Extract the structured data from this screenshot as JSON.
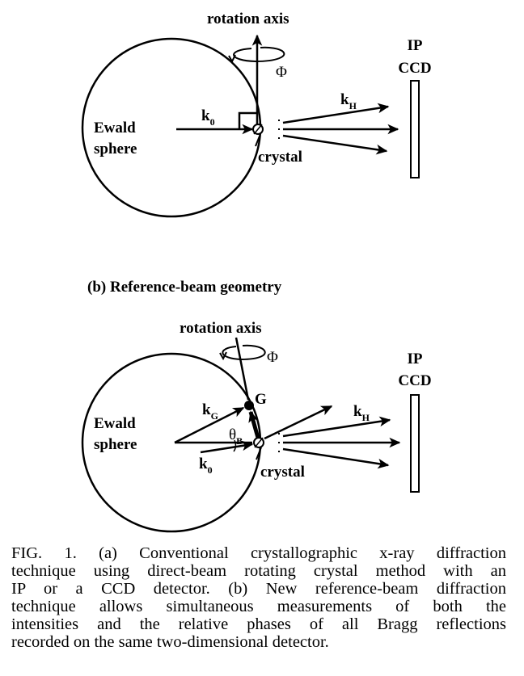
{
  "panel_a": {
    "rotation_axis": "rotation axis",
    "phi": "Φ",
    "ewald_line1": "Ewald",
    "ewald_line2": "sphere",
    "k0_main": "k",
    "k0_sub": "0",
    "kh_main": "k",
    "kh_sub": "H",
    "crystal": "crystal",
    "detector_line1": "IP",
    "detector_line2": "CCD"
  },
  "panel_b": {
    "heading": "(b)  Reference-beam geometry",
    "rotation_axis": "rotation axis",
    "phi": "Φ",
    "g_label": "G",
    "ewald_line1": "Ewald",
    "ewald_line2": "sphere",
    "kg_main": "k",
    "kg_sub": "G",
    "theta_main": "θ",
    "theta_sub": "B",
    "k0_main": "k",
    "k0_sub": "0",
    "kh_main": "k",
    "kh_sub": "H",
    "crystal": "crystal",
    "detector_line1": "IP",
    "detector_line2": "CCD"
  },
  "caption": {
    "line1": "FIG. 1.  (a) Conventional crystallographic x-ray diffraction",
    "line2": "technique using direct-beam rotating crystal method with an",
    "line3": "IP or a CCD detector.  (b) New reference-beam diffraction",
    "line4": "technique allows simultaneous measurements of both the",
    "line5": "intensities and the relative phases of all Bragg reflections",
    "line6": "recorded on the same two-dimensional detector."
  }
}
